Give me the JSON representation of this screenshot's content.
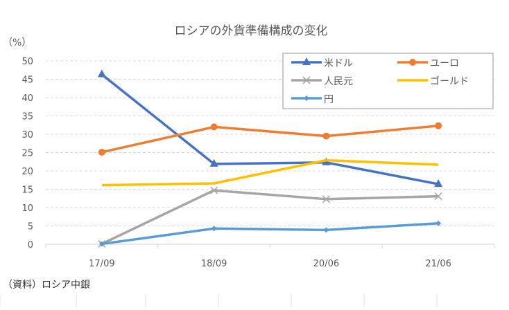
{
  "chart_data": {
    "type": "line",
    "title": "ロシアの外貨準備構成の変化",
    "ylabel": "（%）",
    "xlabel": "",
    "source": "（資料）ロシア中銀",
    "categories": [
      "17/09",
      "18/09",
      "20/06",
      "21/06"
    ],
    "ylim": [
      0,
      50
    ],
    "yticks": [
      0,
      5,
      10,
      15,
      20,
      25,
      30,
      35,
      40,
      45,
      50
    ],
    "grid": true,
    "legend_position": "top-right",
    "series": [
      {
        "name": "米ドル",
        "values": [
          46.3,
          21.9,
          22.3,
          16.4
        ],
        "color": "#4472C4",
        "marker": "triangle"
      },
      {
        "name": "ユーロ",
        "values": [
          25.1,
          32.0,
          29.5,
          32.3
        ],
        "color": "#ED7D31",
        "marker": "circle"
      },
      {
        "name": "人民元",
        "values": [
          0.1,
          14.7,
          12.3,
          13.1
        ],
        "color": "#A5A5A5",
        "marker": "x"
      },
      {
        "name": "ゴールド",
        "values": [
          16.1,
          16.6,
          22.9,
          21.7
        ],
        "color": "#FFC000",
        "marker": "none"
      },
      {
        "name": "円",
        "values": [
          0.1,
          4.3,
          3.9,
          5.7
        ],
        "color": "#5B9BD5",
        "marker": "diamond"
      }
    ]
  }
}
